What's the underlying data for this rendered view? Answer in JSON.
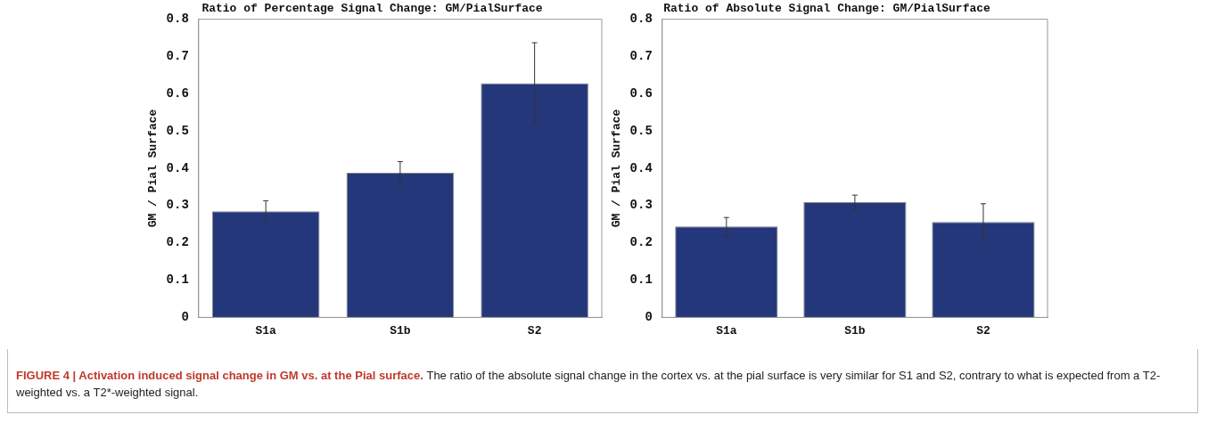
{
  "chart_data": [
    {
      "type": "bar",
      "title": "Ratio of Percentage Signal Change: GM/PialSurface",
      "ylabel": "GM / Pial Surface",
      "categories": [
        "S1a",
        "S1b",
        "S2"
      ],
      "values": [
        0.285,
        0.388,
        0.628
      ],
      "errors": [
        [
          0.258,
          0.313
        ],
        [
          0.358,
          0.418
        ],
        [
          0.52,
          0.737
        ]
      ],
      "color": "#24377a",
      "ylim": [
        0,
        0.8
      ],
      "yticks": [
        0,
        0.1,
        0.2,
        0.3,
        0.4,
        0.5,
        0.6,
        0.7,
        0.8
      ],
      "grid": false
    },
    {
      "type": "bar",
      "title": "Ratio of Absolute Signal Change: GM/PialSurface",
      "ylabel": "GM / Pial Surface",
      "categories": [
        "S1a",
        "S1b",
        "S2"
      ],
      "values": [
        0.244,
        0.309,
        0.256
      ],
      "errors": [
        [
          0.218,
          0.268
        ],
        [
          0.29,
          0.328
        ],
        [
          0.208,
          0.305
        ]
      ],
      "color": "#24377a",
      "ylim": [
        0,
        0.8
      ],
      "yticks": [
        0,
        0.1,
        0.2,
        0.3,
        0.4,
        0.5,
        0.6,
        0.7,
        0.8
      ],
      "grid": false,
      "annotations": [
        "FIGURE 4 | Activation induced signal change in GM vs. at the Pial surface.",
        "The ratio of the absolute signal change in the cortex vs. at the pial surface is very similar for S1 and S2, contrary to what is expected from a T2-weighted vs. a T2*-weighted signal."
      ]
    }
  ]
}
